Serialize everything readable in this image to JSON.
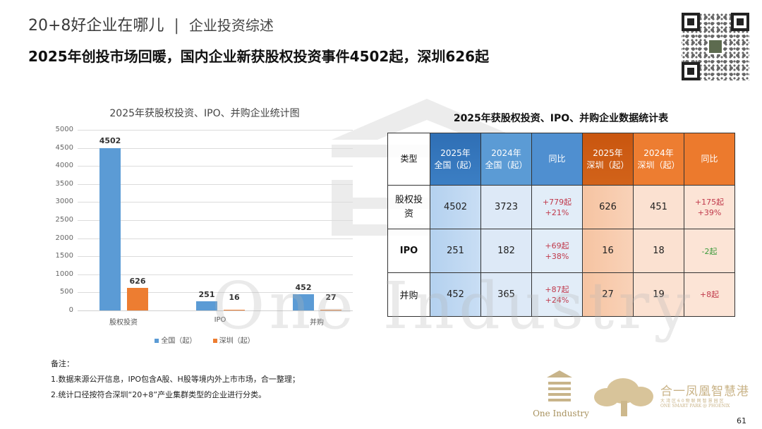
{
  "header": {
    "section_title": "20+8好企业在哪儿",
    "separator": "|",
    "subsection": "企业投资综述",
    "headline": "2025年创投市场回暖，国内企业新获股权投资事件4502起，深圳626起"
  },
  "qr_code": {
    "icon": "qr-code-icon"
  },
  "chart": {
    "title": "2025年获股权投资、IPO、并购企业统计图",
    "y_ticks": [
      "0",
      "500",
      "1000",
      "1500",
      "2000",
      "2500",
      "3000",
      "3500",
      "4000",
      "4500",
      "5000"
    ],
    "categories": [
      "股权投资",
      "IPO",
      "并购"
    ],
    "bar_labels": {
      "nat": [
        "4502",
        "251",
        "452"
      ],
      "sz": [
        "626",
        "16",
        "27"
      ]
    },
    "legend": {
      "nat": "全国（起）",
      "sz": "深圳（起）"
    },
    "colors": {
      "nat": "#5b9bd5",
      "sz": "#ed7d31"
    }
  },
  "chart_data": {
    "type": "bar",
    "title": "2025年获股权投资、IPO、并购企业统计图",
    "categories": [
      "股权投资",
      "IPO",
      "并购"
    ],
    "series": [
      {
        "name": "全国（起）",
        "values": [
          4502,
          251,
          452
        ],
        "color": "#5b9bd5"
      },
      {
        "name": "深圳（起）",
        "values": [
          626,
          16,
          27
        ],
        "color": "#ed7d31"
      }
    ],
    "xlabel": "",
    "ylabel": "",
    "ylim": [
      0,
      5000
    ],
    "y_tick_step": 500,
    "grid": true,
    "legend_position": "bottom",
    "data_labels": true
  },
  "table": {
    "title": "2025年获股权投资、IPO、并购企业数据统计表",
    "headers": [
      {
        "line1": "类型",
        "line2": ""
      },
      {
        "line1": "2025年",
        "line2": "全国（起）"
      },
      {
        "line1": "2024年",
        "line2": "全国（起）"
      },
      {
        "line1": "同比",
        "line2": ""
      },
      {
        "line1": "2025年",
        "line2": "深圳（起）"
      },
      {
        "line1": "2024年",
        "line2": "深圳（起）"
      },
      {
        "line1": "同比",
        "line2": ""
      }
    ],
    "rows": [
      {
        "type": "股权投资",
        "nat_2025": "4502",
        "nat_2024": "3723",
        "nat_yoy_abs": "+779起",
        "nat_yoy_pct": "+21%",
        "sz_2025": "626",
        "sz_2024": "451",
        "sz_yoy_abs": "+175起",
        "sz_yoy_pct": "+39%"
      },
      {
        "type": "IPO",
        "nat_2025": "251",
        "nat_2024": "182",
        "nat_yoy_abs": "+69起",
        "nat_yoy_pct": "+38%",
        "sz_2025": "16",
        "sz_2024": "18",
        "sz_yoy_abs": "-2起",
        "sz_yoy_pct": ""
      },
      {
        "type": "并购",
        "nat_2025": "452",
        "nat_2024": "365",
        "nat_yoy_abs": "+87起",
        "nat_yoy_pct": "+24%",
        "sz_2025": "27",
        "sz_2024": "19",
        "sz_yoy_abs": "+8起",
        "sz_yoy_pct": ""
      }
    ],
    "colors": {
      "positive": "#c0394b",
      "negative": "#3c9b3c"
    }
  },
  "notes": {
    "label": "备注：",
    "items": [
      "1.数据来源公开信息，IPO包含A股、H股等境内外上市市场，合一整理；",
      "2.统计口径按符合深圳“20+8”产业集群类型的企业进行分类。"
    ]
  },
  "footer": {
    "one_industry_logo_text": "One Industry",
    "watermark_text": "One Industry",
    "phoenix_name": "合一凤凰智慧港",
    "phoenix_sub": "大湾区60物联网智慧园区",
    "phoenix_en": "ONE SMART PARK @ PHOENIX",
    "page_number": "61"
  }
}
